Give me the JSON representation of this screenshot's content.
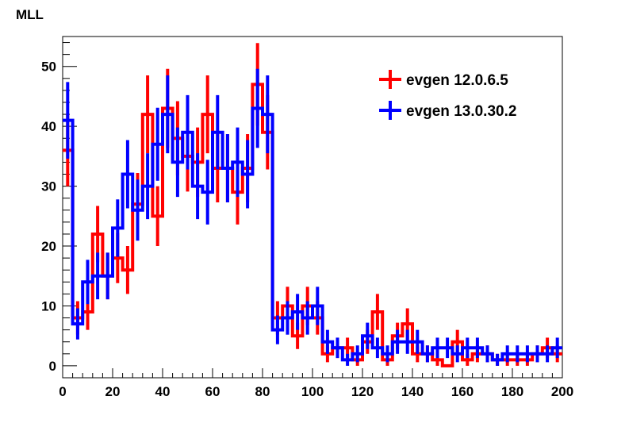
{
  "chart_data": {
    "type": "histogram",
    "title": "MLL",
    "xlabel": "",
    "ylabel": "",
    "xlim": [
      0,
      200
    ],
    "ylim": [
      -2,
      55
    ],
    "x_ticks": [
      0,
      20,
      40,
      60,
      80,
      100,
      120,
      140,
      160,
      180,
      200
    ],
    "y_ticks": [
      0,
      10,
      20,
      30,
      40,
      50
    ],
    "bin_width": 4,
    "legend_position": "top-right",
    "grid": false,
    "series": [
      {
        "name": "evgen 12.0.6.5",
        "color": "#ff0000",
        "values": [
          36,
          8,
          9,
          22,
          15,
          18,
          16,
          27,
          42,
          25,
          43,
          38,
          35,
          34,
          42,
          33,
          33,
          29,
          33,
          47,
          39,
          8,
          10,
          5,
          10,
          8,
          2,
          3,
          3,
          1,
          4,
          9,
          1,
          5,
          7,
          2,
          2,
          1,
          0,
          4,
          1,
          2,
          2,
          1,
          1,
          1,
          1,
          2,
          3,
          2
        ],
        "errors": [
          6,
          2.8,
          3,
          4.7,
          3.9,
          4.2,
          4,
          5.2,
          6.5,
          5,
          6.6,
          6.2,
          5.9,
          5.8,
          6.5,
          5.7,
          5.7,
          5.4,
          5.7,
          6.9,
          6.2,
          2.8,
          3.2,
          2.2,
          3.2,
          2.8,
          1.4,
          1.7,
          1.7,
          1,
          2,
          3,
          1,
          2.2,
          2.6,
          1.4,
          1.4,
          1,
          0,
          2,
          1,
          1.4,
          1.4,
          1,
          1,
          1,
          1,
          1.4,
          1.7,
          1.4
        ]
      },
      {
        "name": "evgen 13.0.30.2",
        "color": "#0000ff",
        "values": [
          41,
          7,
          14,
          15,
          15,
          23,
          32,
          26,
          30,
          37,
          42,
          34,
          39,
          30,
          29,
          39,
          33,
          34,
          32,
          43,
          42,
          6,
          8,
          9,
          8,
          10,
          4,
          3,
          1,
          2,
          5,
          3,
          2,
          4,
          4,
          4,
          2,
          3,
          3,
          2,
          3,
          3,
          2,
          1,
          2,
          2,
          2,
          2,
          2,
          3
        ],
        "errors": [
          6.4,
          2.6,
          3.7,
          3.9,
          3.9,
          4.8,
          5.7,
          5.1,
          5.5,
          6.1,
          6.5,
          5.8,
          6.2,
          5.5,
          5.4,
          6.2,
          5.7,
          5.8,
          5.7,
          6.6,
          6.5,
          2.4,
          2.8,
          3,
          2.8,
          3.2,
          2,
          1.7,
          1,
          1.4,
          2.2,
          1.7,
          1.4,
          2,
          2,
          2,
          1.4,
          1.7,
          1.7,
          1.4,
          1.7,
          1.7,
          1.4,
          1,
          1.4,
          1.4,
          1.4,
          1.4,
          1.4,
          1.7
        ]
      }
    ]
  }
}
